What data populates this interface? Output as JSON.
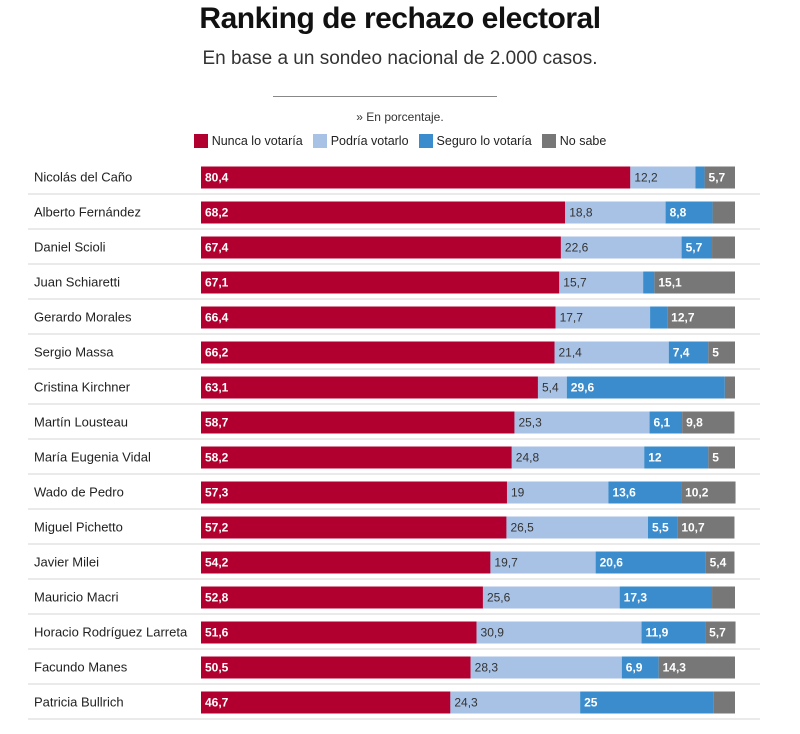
{
  "title": "Ranking de rechazo electoral",
  "subtitle": "En base a un sondeo nacional de 2.000 casos.",
  "note": "» En porcentaje.",
  "colors": {
    "nunca": "#b1002f",
    "podria": "#a8c2e6",
    "seguro": "#3b8ccc",
    "nosabe": "#777777"
  },
  "legend": [
    {
      "label": "Nunca lo votaría",
      "color": "#b1002f"
    },
    {
      "label": "Podría votarlo",
      "color": "#a8c2e6"
    },
    {
      "label": "Seguro lo votaría",
      "color": "#3b8ccc"
    },
    {
      "label": "No sabe",
      "color": "#777777"
    }
  ],
  "chart_data": {
    "type": "bar",
    "orientation": "horizontal",
    "stacked": true,
    "categories": [
      "Nicolás del Caño",
      "Alberto Fernández",
      "Daniel Scioli",
      "Juan Schiaretti",
      "Gerardo Morales",
      "Sergio Massa",
      "Cristina Kirchner",
      "Martín Lousteau",
      "María Eugenia Vidal",
      "Wado de Pedro",
      "Miguel Pichetto",
      "Javier Milei",
      "Mauricio Macri",
      "Horacio Rodríguez Larreta",
      "Facundo Manes",
      "Patricia Bullrich"
    ],
    "series": [
      {
        "name": "Nunca lo votaría",
        "values": [
          80.4,
          68.2,
          67.4,
          67.1,
          66.4,
          66.2,
          63.1,
          58.7,
          58.2,
          57.3,
          57.2,
          54.2,
          52.8,
          51.6,
          50.5,
          46.7
        ],
        "labels": [
          "80,4",
          "68,2",
          "67,4",
          "67,1",
          "66,4",
          "66,2",
          "63,1",
          "58,7",
          "58,2",
          "57,3",
          "57,2",
          "54,2",
          "52,8",
          "51,6",
          "50,5",
          "46,7"
        ]
      },
      {
        "name": "Podría votarlo",
        "values": [
          12.2,
          18.8,
          22.6,
          15.7,
          17.7,
          21.4,
          5.4,
          25.3,
          24.8,
          19,
          26.5,
          19.7,
          25.6,
          30.9,
          28.3,
          24.3
        ],
        "labels": [
          "12,2",
          "18,8",
          "22,6",
          "15,7",
          "17,7",
          "21,4",
          "5,4",
          "25,3",
          "24,8",
          "19",
          "26,5",
          "19,7",
          "25,6",
          "30,9",
          "28,3",
          "24,3"
        ]
      },
      {
        "name": "Seguro lo votaría",
        "values": [
          1.7,
          8.8,
          5.7,
          2.1,
          3.2,
          7.4,
          29.6,
          6.1,
          12,
          13.6,
          5.5,
          20.6,
          17.3,
          11.9,
          6.9,
          25
        ],
        "labels": [
          "",
          "8,8",
          "5,7",
          "",
          "",
          "7,4",
          "29,6",
          "6,1",
          "12",
          "13,6",
          "5,5",
          "20,6",
          "17,3",
          "11,9",
          "6,9",
          "25"
        ]
      },
      {
        "name": "No sabe",
        "values": [
          5.7,
          4.2,
          4.3,
          15.1,
          12.7,
          5,
          1.9,
          9.8,
          5,
          10.2,
          10.7,
          5.4,
          4.3,
          5.7,
          14.3,
          4
        ],
        "labels": [
          "5,7",
          "",
          "",
          "15,1",
          "12,7",
          "5",
          "",
          "9,8",
          "5",
          "10,2",
          "10,7",
          "5,4",
          "",
          "5,7",
          "14,3",
          ""
        ]
      }
    ],
    "xlim": [
      0,
      100
    ],
    "legend_position": "top-center"
  }
}
